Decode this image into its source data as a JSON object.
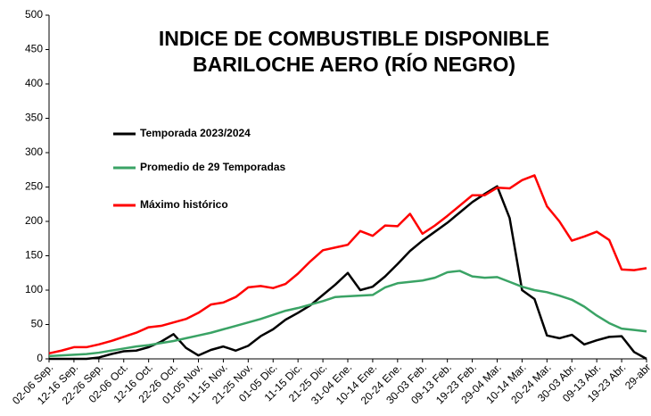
{
  "chart_data": {
    "type": "line",
    "title": [
      "INDICE DE COMBUSTIBLE DISPONIBLE",
      "BARILOCHE AERO (RÍO NEGRO)"
    ],
    "categories": [
      "02-06 Sep.",
      null,
      "12-16 Sep.",
      null,
      "22-26 Sep.",
      null,
      "02-06 Oct.",
      null,
      "12-16 Oct.",
      null,
      "22-26 Oct.",
      null,
      "01-05 Nov.",
      null,
      "11-15 Nov.",
      null,
      "21-25 Nov.",
      null,
      "01-05 Dic.",
      null,
      "11-15 Dic.",
      null,
      "21-25 Dic.",
      null,
      "31-04 Ene.",
      null,
      "10-14 Ene.",
      null,
      "20-24 Ene.",
      null,
      "30-03 Feb.",
      null,
      "09-13 Feb.",
      null,
      "19-23 Feb.",
      null,
      "29-04 Mar.",
      null,
      "10-14 Mar.",
      null,
      "20-24 Mar.",
      null,
      "30-03 Abr.",
      null,
      "09-13 Abr.",
      null,
      "19-23 Abr.",
      null,
      "29-abr"
    ],
    "series": [
      {
        "name": "Temporada 2023/2024",
        "color": "#000000",
        "values": [
          0,
          0,
          0,
          0,
          2,
          7,
          11,
          12,
          17,
          25,
          36,
          16,
          5,
          13,
          18,
          12,
          19,
          33,
          43,
          57,
          67,
          78,
          93,
          108,
          125,
          100,
          105,
          120,
          138,
          157,
          172,
          185,
          198,
          213,
          228,
          240,
          251,
          205,
          100,
          87,
          34,
          30,
          35,
          21,
          27,
          32,
          33,
          10,
          0
        ]
      },
      {
        "name": "Promedio de 29 Temporadas",
        "color": "#3aa365",
        "values": [
          4,
          5,
          6,
          7,
          9,
          12,
          15,
          18,
          20,
          23,
          26,
          30,
          34,
          38,
          43,
          48,
          53,
          58,
          64,
          70,
          74,
          79,
          84,
          90,
          91,
          92,
          93,
          104,
          110,
          112,
          114,
          118,
          126,
          128,
          120,
          118,
          119,
          112,
          105,
          100,
          97,
          92,
          86,
          76,
          63,
          52,
          44,
          42,
          40
        ]
      },
      {
        "name": "Máximo histórico",
        "color": "#ff0000",
        "values": [
          8,
          12,
          17,
          17,
          21,
          26,
          32,
          38,
          46,
          48,
          53,
          58,
          67,
          79,
          82,
          90,
          104,
          106,
          103,
          109,
          124,
          142,
          158,
          162,
          166,
          186,
          179,
          194,
          193,
          211,
          182,
          194,
          208,
          223,
          238,
          238,
          249,
          248,
          260,
          267,
          222,
          200,
          172,
          178,
          185,
          173,
          130,
          129,
          132
        ]
      }
    ],
    "ylim": [
      0,
      500
    ],
    "yticks": [
      0,
      50,
      100,
      150,
      200,
      250,
      300,
      350,
      400,
      450,
      500
    ]
  }
}
